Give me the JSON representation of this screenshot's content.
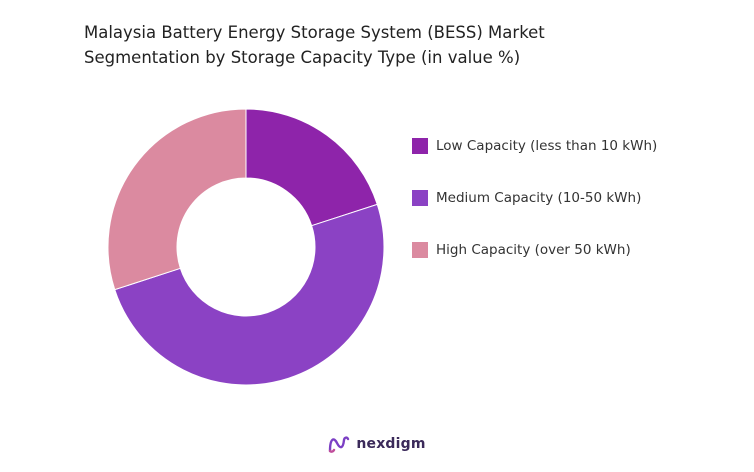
{
  "chart_data": {
    "type": "pie",
    "title_lines": [
      "Malaysia Battery Energy Storage System (BESS) Market",
      "Segmentation by Storage Capacity Type (in value %)"
    ],
    "donut": true,
    "start_angle_deg": 0,
    "direction": "clockwise",
    "legend_position": "right",
    "categories": [
      "Low Capacity (less than 10 kWh)",
      "Medium Capacity (10-50 kWh)",
      "High Capacity (over 50 kWh)"
    ],
    "values": [
      20,
      50,
      30
    ],
    "colors": [
      "#8e24aa",
      "#8b42c4",
      "#db8aa0"
    ]
  },
  "brand": {
    "name": "nexdigm",
    "icon": "nexdigm-logo-icon"
  }
}
